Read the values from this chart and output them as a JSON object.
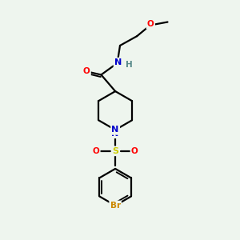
{
  "bg_color": "#eef5ee",
  "bond_color": "#000000",
  "atom_colors": {
    "O": "#ff0000",
    "N": "#0000cc",
    "S": "#cccc00",
    "Br": "#cc8800",
    "H": "#558888",
    "C": "#000000"
  }
}
